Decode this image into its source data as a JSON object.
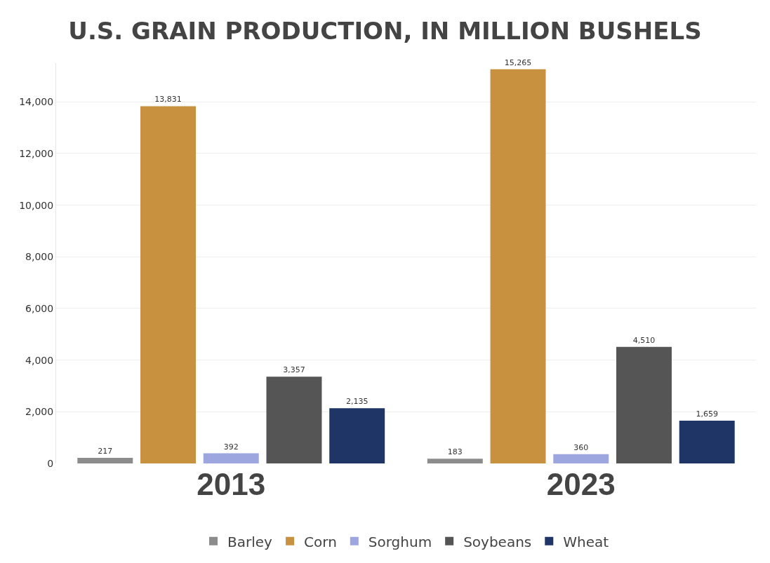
{
  "chart_data": {
    "type": "bar",
    "title": "U.S. GRAIN PRODUCTION, IN MILLION BUSHELS",
    "categories": [
      "2013",
      "2023"
    ],
    "series": [
      {
        "name": "Barley",
        "color": "#8c8c8c",
        "values": [
          217,
          183
        ],
        "value_labels": [
          "217",
          "183"
        ]
      },
      {
        "name": "Corn",
        "color": "#c8913f",
        "values": [
          13831,
          15265
        ],
        "value_labels": [
          "13,831",
          "15,265"
        ]
      },
      {
        "name": "Sorghum",
        "color": "#9ea6e0",
        "values": [
          392,
          360
        ],
        "value_labels": [
          "392",
          "360"
        ]
      },
      {
        "name": "Soybeans",
        "color": "#555555",
        "values": [
          3357,
          4510
        ],
        "value_labels": [
          "3,357",
          "4,510"
        ]
      },
      {
        "name": "Wheat",
        "color": "#1f3566",
        "values": [
          2135,
          1659
        ],
        "value_labels": [
          "2,135",
          "1,659"
        ]
      }
    ],
    "ylim": [
      0,
      15500
    ],
    "yticks": [
      {
        "value": 0,
        "label": "0"
      },
      {
        "value": 2000,
        "label": "2,000"
      },
      {
        "value": 4000,
        "label": "4,000"
      },
      {
        "value": 6000,
        "label": "6,000"
      },
      {
        "value": 8000,
        "label": "8,000"
      },
      {
        "value": 10000,
        "label": "10,000"
      },
      {
        "value": 12000,
        "label": "12,000"
      },
      {
        "value": 14000,
        "label": "14,000"
      }
    ],
    "grid": "y",
    "legend": "bottom"
  }
}
